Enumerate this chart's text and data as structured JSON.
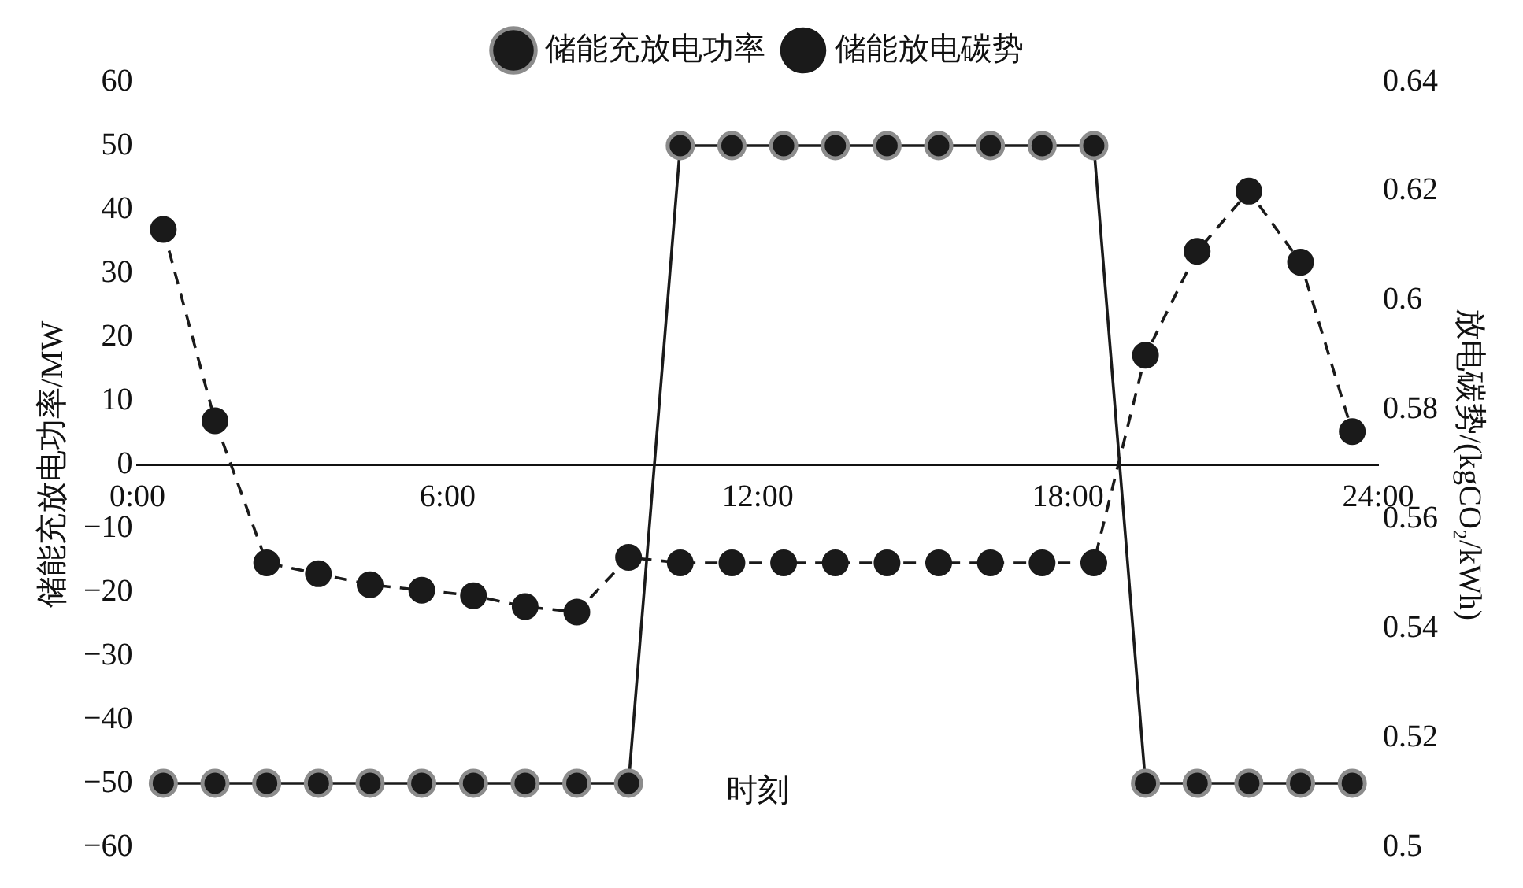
{
  "chart_data": {
    "type": "line",
    "xlabel": "时刻",
    "ylabel": "储能充放电功率/MW",
    "y2label": "放电碳势/(kgCO₂/kWh)",
    "x": [
      0.5,
      1.5,
      2.5,
      3.5,
      4.5,
      5.5,
      6.5,
      7.5,
      8.5,
      9.5,
      10.5,
      11.5,
      12.5,
      13.5,
      14.5,
      15.5,
      16.5,
      17.5,
      18.5,
      19.5,
      20.5,
      21.5,
      22.5,
      23.5
    ],
    "xlim": [
      0,
      24
    ],
    "xticks": [
      {
        "value": 0,
        "label": "0:00"
      },
      {
        "value": 6,
        "label": "6:00"
      },
      {
        "value": 12,
        "label": "12:00"
      },
      {
        "value": 18,
        "label": "18:00"
      },
      {
        "value": 24,
        "label": "24:00"
      }
    ],
    "ylim": [
      -60,
      60
    ],
    "yticks": [
      -60,
      -50,
      -40,
      -30,
      -20,
      -10,
      0,
      10,
      20,
      30,
      40,
      50,
      60
    ],
    "y2lim": [
      0.5,
      0.64
    ],
    "y2ticks": [
      0.5,
      0.52,
      0.54,
      0.56,
      0.58,
      0.6,
      0.62,
      0.64
    ],
    "grid": false,
    "legend": "top",
    "marker": "circle",
    "series": [
      {
        "name": "储能充放电功率",
        "color": "#1a1a1a",
        "line_style": "solid",
        "values": [
          -50,
          -50,
          -50,
          -50,
          -50,
          -50,
          -50,
          -50,
          -50,
          -50,
          50,
          50,
          50,
          50,
          50,
          50,
          50,
          50,
          50,
          -50,
          -50,
          -50,
          -50,
          -50
        ]
      },
      {
        "name": "储能放电碳势",
        "color": "#1a1a1a",
        "line_style": "dashed",
        "axis": "y2",
        "values": [
          0.613,
          0.578,
          0.552,
          0.55,
          0.548,
          0.547,
          0.546,
          0.544,
          0.543,
          0.553,
          0.552,
          0.552,
          0.552,
          0.552,
          0.552,
          0.552,
          0.552,
          0.552,
          0.552,
          0.59,
          0.609,
          0.62,
          0.607,
          0.576
        ]
      }
    ]
  }
}
